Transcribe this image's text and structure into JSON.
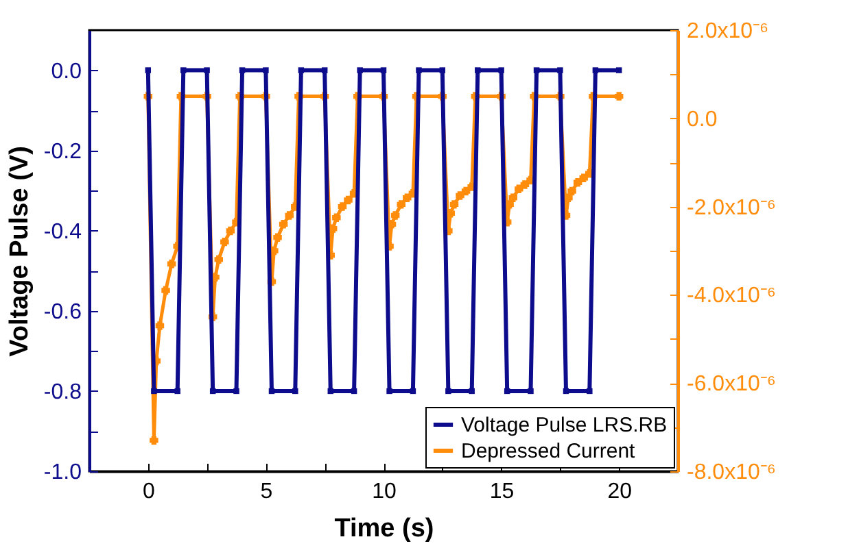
{
  "chart_data": {
    "type": "line",
    "xlabel": "Time (s)",
    "ylabel": "Voltage Pulse (V)",
    "xlim": [
      -2.5,
      22.5
    ],
    "xticks": [
      0,
      {
        "value": 2.5,
        "label": null
      },
      5,
      {
        "value": 7.5,
        "label": null
      },
      10,
      {
        "value": 12.5,
        "label": null
      },
      15,
      {
        "value": 17.5,
        "label": null
      },
      20
    ],
    "ylim": [
      -1.0,
      0.1
    ],
    "yticks": [
      {
        "value": -1.0,
        "label": "-1.0"
      },
      {
        "value": -0.9,
        "label": null
      },
      {
        "value": -0.8,
        "label": "-0.8"
      },
      {
        "value": -0.7,
        "label": null
      },
      {
        "value": -0.6,
        "label": "-0.6"
      },
      {
        "value": -0.5,
        "label": null
      },
      {
        "value": -0.4,
        "label": "-0.4"
      },
      {
        "value": -0.3,
        "label": null
      },
      {
        "value": -0.2,
        "label": "-0.2"
      },
      {
        "value": -0.1,
        "label": null
      },
      {
        "value": 0,
        "label": "0.0"
      }
    ],
    "y2lim": [
      -8e-06,
      2e-06
    ],
    "y2ticks": [
      {
        "value": -8e-06,
        "label": "-8.0x10⁻⁶"
      },
      {
        "value": -7e-06,
        "label": null
      },
      {
        "value": -6e-06,
        "label": "-6.0x10⁻⁶"
      },
      {
        "value": -5e-06,
        "label": null
      },
      {
        "value": -4e-06,
        "label": "-4.0x10⁻⁶"
      },
      {
        "value": -3e-06,
        "label": null
      },
      {
        "value": -2e-06,
        "label": "-2.0x10⁻⁶"
      },
      {
        "value": -1e-06,
        "label": null
      },
      {
        "value": 0,
        "label": "0.0"
      },
      {
        "value": 1e-06,
        "label": null
      },
      {
        "value": 2e-06,
        "label": "2.0x10⁻⁶"
      }
    ],
    "legend": "bottom right",
    "line_style": "solid",
    "series": [
      {
        "name": "Voltage Pulse LRS.RB",
        "color": "#0c0c8c",
        "marker": "square",
        "x": [
          0,
          0.25,
          1.25,
          1.5,
          2.5,
          2.75,
          3.75,
          4,
          5,
          5.25,
          6.25,
          6.5,
          7.5,
          7.75,
          8.75,
          9,
          10,
          10.25,
          11.25,
          11.5,
          12.5,
          12.75,
          13.75,
          14,
          15,
          15.25,
          16.25,
          16.5,
          17.5,
          17.75,
          18.75,
          19,
          20
        ],
        "values": [
          0,
          -0.8,
          -0.8,
          0,
          0,
          -0.8,
          -0.8,
          0,
          0,
          -0.8,
          -0.8,
          0,
          0,
          -0.8,
          -0.8,
          0,
          0,
          -0.8,
          -0.8,
          0,
          0,
          -0.8,
          -0.8,
          0,
          0,
          -0.8,
          -0.8,
          0,
          0,
          -0.8,
          -0.8,
          0,
          0
        ]
      },
      {
        "name": "Depressed Current",
        "color": "#ff8c0a",
        "marker": "cross",
        "axis": "y2",
        "x": [
          0,
          0.25,
          0.35,
          0.5,
          0.75,
          1,
          1.25,
          1.4,
          2.5,
          2.75,
          2.85,
          3,
          3.25,
          3.5,
          3.75,
          3.9,
          5,
          5.25,
          5.35,
          5.5,
          5.75,
          6,
          6.25,
          6.4,
          7.5,
          7.75,
          7.85,
          8,
          8.25,
          8.5,
          8.75,
          8.9,
          10,
          10.25,
          10.35,
          10.5,
          10.75,
          11,
          11.25,
          11.4,
          12.5,
          12.75,
          12.85,
          13,
          13.25,
          13.5,
          13.75,
          13.9,
          15,
          15.25,
          15.35,
          15.5,
          15.75,
          16,
          16.25,
          16.4,
          17.5,
          17.75,
          17.85,
          18,
          18.25,
          18.5,
          18.75,
          18.9,
          20
        ],
        "values": [
          5e-07,
          -7.3e-06,
          -5.5e-06,
          -4.7e-06,
          -3.9e-06,
          -3.3e-06,
          -2.9e-06,
          5e-07,
          5e-07,
          -4.5e-06,
          -3.6e-06,
          -3.2e-06,
          -2.8e-06,
          -2.55e-06,
          -2.35e-06,
          5e-07,
          5e-07,
          -3.7e-06,
          -3e-06,
          -2.7e-06,
          -2.4e-06,
          -2.2e-06,
          -2e-06,
          5e-07,
          5e-07,
          -3.1e-06,
          -2.5e-06,
          -2.25e-06,
          -2e-06,
          -1.85e-06,
          -1.7e-06,
          5e-07,
          5e-07,
          -2.9e-06,
          -2.4e-06,
          -2.2e-06,
          -1.95e-06,
          -1.8e-06,
          -1.7e-06,
          5e-07,
          5e-07,
          -2.55e-06,
          -2.15e-06,
          -1.95e-06,
          -1.75e-06,
          -1.65e-06,
          -1.55e-06,
          5e-07,
          5e-07,
          -2.35e-06,
          -1.95e-06,
          -1.8e-06,
          -1.6e-06,
          -1.5e-06,
          -1.4e-06,
          5e-07,
          5e-07,
          -2.2e-06,
          -1.8e-06,
          -1.65e-06,
          -1.45e-06,
          -1.35e-06,
          -1.25e-06,
          5e-07,
          5e-07
        ]
      }
    ]
  }
}
